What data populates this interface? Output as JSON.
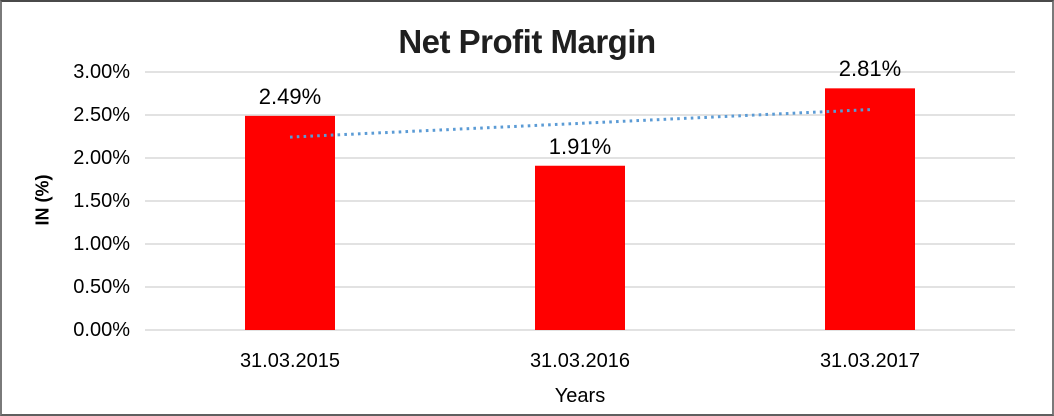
{
  "chart_data": {
    "type": "bar",
    "title": "Net Profit Margin",
    "xlabel": "Years",
    "ylabel": "IN (%)",
    "categories": [
      "31.03.2015",
      "31.03.2016",
      "31.03.2017"
    ],
    "values": [
      2.49,
      1.91,
      2.81
    ],
    "data_labels": [
      "2.49%",
      "1.91%",
      "2.81%"
    ],
    "ylim": [
      0,
      3
    ],
    "ytick_step": 0.5,
    "ytick_labels": [
      "0.00%",
      "0.50%",
      "1.00%",
      "1.50%",
      "2.00%",
      "2.50%",
      "3.00%"
    ],
    "grid": true,
    "legend": "none",
    "bar_color": "#FF0000",
    "gridline_color": "#D9D9D9",
    "trendline": {
      "type": "linear",
      "style": "dotted",
      "color": "#5B9BD5",
      "start_value": 2.243,
      "end_value": 2.563
    }
  }
}
